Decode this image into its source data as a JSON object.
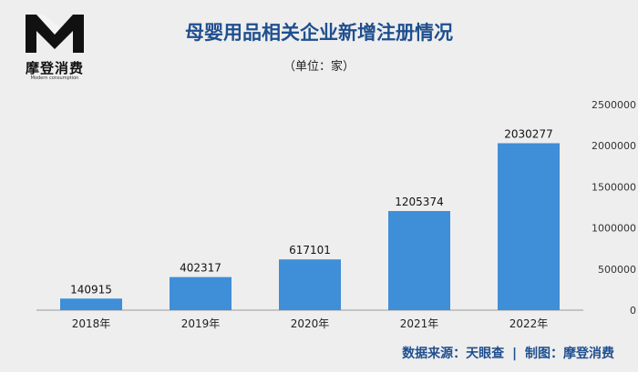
{
  "logo": {
    "name": "摩登消费",
    "subtitle": "Modern consumption"
  },
  "title": "母婴用品相关企业新增注册情况",
  "unit": "（单位：家）",
  "source": {
    "data_source": "数据来源：天眼查",
    "separator": "|",
    "made_by": "制图：摩登消费"
  },
  "chart_data": {
    "type": "bar",
    "categories": [
      "2018年",
      "2019年",
      "2020年",
      "2021年",
      "2022年"
    ],
    "values": [
      140915,
      402317,
      617101,
      1205374,
      2030277
    ],
    "ylim": [
      0,
      2500000
    ],
    "yticks": [
      0,
      500000,
      1000000,
      1500000,
      2000000,
      2500000
    ],
    "title": "母婴用品相关企业新增注册情况",
    "xlabel": "",
    "ylabel": "",
    "grid": false,
    "yaxis_position": "right",
    "bar_color": "#3f8ed8",
    "axis_color": "#999999"
  }
}
